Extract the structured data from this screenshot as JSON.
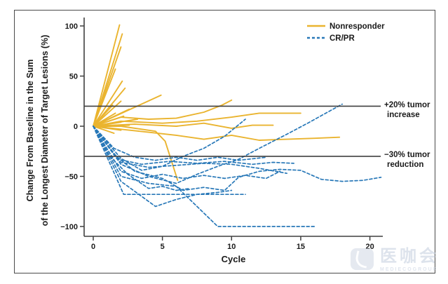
{
  "figure": {
    "background": "#ffffff",
    "border_color": "#4a4a4a",
    "axis_color": "#3f3f3f",
    "text_color": "#1a1a1a"
  },
  "chart_data": {
    "type": "line",
    "title": "",
    "xlabel": "Cycle",
    "ylabel_line1": "Change From Baseline in the Sum",
    "ylabel_line2": "of the Longest Diameter of Target Lesions (%)",
    "x_ticks": [
      0,
      5,
      10,
      15,
      20
    ],
    "y_ticks": [
      100,
      50,
      0,
      -50,
      -100
    ],
    "xlim": [
      0,
      21
    ],
    "ylim": [
      -110,
      105
    ],
    "grid": false,
    "legend": {
      "position": "top-right",
      "entries": [
        {
          "label": "Nonresponder",
          "color": "#eab42f",
          "style": "solid"
        },
        {
          "label": "CR/PR",
          "color": "#2878b8",
          "style": "dashed"
        }
      ]
    },
    "reference_lines": [
      {
        "y": 20,
        "color": "#3f3f3f",
        "label_line1": "+20% tumor",
        "label_line2": "increase"
      },
      {
        "y": -30,
        "color": "#3f3f3f",
        "label_line1": "−30% tumor",
        "label_line2": "reduction"
      }
    ],
    "series": [
      {
        "name": "n1",
        "group": "Nonresponder",
        "points": [
          [
            0,
            0
          ],
          [
            1.9,
            101
          ]
        ]
      },
      {
        "name": "n2",
        "group": "Nonresponder",
        "points": [
          [
            0,
            0
          ],
          [
            2.1,
            92
          ]
        ]
      },
      {
        "name": "n3",
        "group": "Nonresponder",
        "points": [
          [
            0,
            0
          ],
          [
            2.0,
            79
          ]
        ]
      },
      {
        "name": "n4",
        "group": "Nonresponder",
        "points": [
          [
            0,
            0
          ],
          [
            1.6,
            57
          ]
        ]
      },
      {
        "name": "n5",
        "group": "Nonresponder",
        "points": [
          [
            0,
            0
          ],
          [
            2.1,
            45
          ]
        ]
      },
      {
        "name": "n6",
        "group": "Nonresponder",
        "points": [
          [
            0,
            0
          ],
          [
            2.3,
            38
          ]
        ]
      },
      {
        "name": "n7",
        "group": "Nonresponder",
        "points": [
          [
            0,
            0
          ],
          [
            4.9,
            31
          ]
        ]
      },
      {
        "name": "n8",
        "group": "Nonresponder",
        "points": [
          [
            0,
            0
          ],
          [
            2.0,
            25
          ]
        ]
      },
      {
        "name": "n9",
        "group": "Nonresponder",
        "points": [
          [
            0,
            0
          ],
          [
            1.4,
            21
          ]
        ]
      },
      {
        "name": "n10",
        "group": "Nonresponder",
        "points": [
          [
            0,
            0
          ],
          [
            2.6,
            17
          ]
        ]
      },
      {
        "name": "n11",
        "group": "Nonresponder",
        "points": [
          [
            0,
            0
          ],
          [
            1.6,
            13
          ]
        ]
      },
      {
        "name": "n12",
        "group": "Nonresponder",
        "points": [
          [
            0,
            0
          ],
          [
            2.2,
            10
          ]
        ]
      },
      {
        "name": "n13",
        "group": "Nonresponder",
        "points": [
          [
            0,
            0
          ],
          [
            3.2,
            7
          ]
        ]
      },
      {
        "name": "n14",
        "group": "Nonresponder",
        "points": [
          [
            0,
            0
          ],
          [
            2.0,
            4
          ]
        ]
      },
      {
        "name": "n15",
        "group": "Nonresponder",
        "points": [
          [
            0,
            0
          ],
          [
            2.6,
            1
          ]
        ]
      },
      {
        "name": "n16",
        "group": "Nonresponder",
        "points": [
          [
            0,
            0
          ],
          [
            2.0,
            -4
          ]
        ]
      },
      {
        "name": "n17",
        "group": "Nonresponder",
        "points": [
          [
            0,
            0
          ],
          [
            1.5,
            -7
          ]
        ]
      },
      {
        "name": "n18",
        "group": "Nonresponder",
        "points": [
          [
            0,
            0
          ],
          [
            2,
            9
          ],
          [
            4,
            7
          ],
          [
            6,
            8
          ],
          [
            8,
            14
          ],
          [
            9.3,
            21
          ],
          [
            10,
            26
          ]
        ]
      },
      {
        "name": "n19",
        "group": "Nonresponder",
        "points": [
          [
            0,
            0
          ],
          [
            2,
            5
          ],
          [
            5,
            3
          ],
          [
            7.5,
            5
          ],
          [
            10,
            9
          ],
          [
            12,
            13
          ],
          [
            15,
            13
          ]
        ]
      },
      {
        "name": "n20",
        "group": "Nonresponder",
        "points": [
          [
            0,
            0
          ],
          [
            3,
            2
          ],
          [
            6,
            0
          ],
          [
            8,
            3
          ],
          [
            10,
            -2
          ],
          [
            11.5,
            1
          ],
          [
            13,
            1
          ]
        ]
      },
      {
        "name": "n21",
        "group": "Nonresponder",
        "points": [
          [
            0,
            0
          ],
          [
            2,
            -3
          ],
          [
            4,
            -6
          ],
          [
            6,
            -9
          ],
          [
            8,
            -13
          ],
          [
            10,
            -9
          ],
          [
            12,
            -14
          ],
          [
            14,
            -13
          ],
          [
            16,
            -12
          ],
          [
            17.8,
            -11
          ]
        ]
      },
      {
        "name": "n22",
        "group": "Nonresponder",
        "points": [
          [
            0,
            0
          ],
          [
            2,
            0
          ],
          [
            4.5,
            -5
          ],
          [
            5.2,
            -15
          ],
          [
            6.1,
            -54
          ]
        ]
      },
      {
        "name": "c1",
        "group": "CR/PR",
        "points": [
          [
            0,
            0
          ],
          [
            1.5,
            -28
          ],
          [
            3,
            -45
          ],
          [
            5,
            -52
          ],
          [
            6.5,
            -64
          ],
          [
            8,
            -61
          ],
          [
            9.5,
            -64
          ],
          [
            10.5,
            -51
          ],
          [
            12,
            -45
          ],
          [
            13.5,
            -43
          ],
          [
            15,
            -44
          ],
          [
            16.5,
            -53
          ],
          [
            18,
            -55
          ],
          [
            19.5,
            -54
          ],
          [
            20.8,
            -51
          ]
        ]
      },
      {
        "name": "c2",
        "group": "CR/PR",
        "points": [
          [
            0,
            0
          ],
          [
            2.2,
            -68
          ],
          [
            6,
            -68
          ],
          [
            11,
            -68
          ]
        ]
      },
      {
        "name": "c3",
        "group": "CR/PR",
        "points": [
          [
            0,
            0
          ],
          [
            2,
            -50
          ],
          [
            4,
            -57
          ],
          [
            6,
            -60
          ],
          [
            7.5,
            -80
          ],
          [
            9,
            -100
          ],
          [
            12,
            -100
          ],
          [
            16,
            -100
          ]
        ]
      },
      {
        "name": "c4",
        "group": "CR/PR",
        "points": [
          [
            0,
            0
          ],
          [
            2,
            -38
          ],
          [
            4,
            -50
          ],
          [
            6,
            -57
          ],
          [
            7.5,
            -48
          ],
          [
            9,
            -40
          ],
          [
            10.5,
            -33
          ],
          [
            12,
            -22
          ],
          [
            14,
            -8
          ],
          [
            15.5,
            3
          ],
          [
            18,
            22
          ]
        ]
      },
      {
        "name": "c5",
        "group": "CR/PR",
        "points": [
          [
            0,
            0
          ],
          [
            2,
            -32
          ],
          [
            3.5,
            -44
          ],
          [
            5,
            -40
          ],
          [
            6.5,
            -30
          ],
          [
            8,
            -22
          ],
          [
            9.5,
            -10
          ],
          [
            11,
            7
          ]
        ]
      },
      {
        "name": "c6",
        "group": "CR/PR",
        "points": [
          [
            0,
            0
          ],
          [
            1.8,
            -33
          ],
          [
            3.5,
            -38
          ],
          [
            5.5,
            -35
          ],
          [
            7.5,
            -37
          ],
          [
            9.5,
            -35
          ],
          [
            11.5,
            -38
          ],
          [
            13,
            -36
          ],
          [
            14.5,
            -37
          ]
        ]
      },
      {
        "name": "c7",
        "group": "CR/PR",
        "points": [
          [
            0,
            0
          ],
          [
            2,
            -36
          ],
          [
            4,
            -41
          ],
          [
            6,
            -39
          ],
          [
            8,
            -37
          ],
          [
            10,
            -38
          ],
          [
            12,
            -42
          ],
          [
            14,
            -47
          ]
        ]
      },
      {
        "name": "c8",
        "group": "CR/PR",
        "points": [
          [
            0,
            0
          ],
          [
            1.5,
            -22
          ],
          [
            3,
            -31
          ],
          [
            4.5,
            -34
          ],
          [
            6,
            -31
          ],
          [
            7.5,
            -34
          ],
          [
            9,
            -31
          ],
          [
            10.5,
            -34
          ],
          [
            12.5,
            -31
          ]
        ]
      },
      {
        "name": "c9",
        "group": "CR/PR",
        "points": [
          [
            0,
            0
          ],
          [
            2,
            -45
          ],
          [
            3.5,
            -52
          ],
          [
            5,
            -48
          ],
          [
            6.5,
            -52
          ],
          [
            8,
            -49
          ],
          [
            9.5,
            -52
          ],
          [
            11,
            -49
          ],
          [
            12.5,
            -52
          ],
          [
            13.5,
            -45
          ]
        ]
      },
      {
        "name": "c10",
        "group": "CR/PR",
        "points": [
          [
            0,
            0
          ],
          [
            2,
            -55
          ],
          [
            4.5,
            -80
          ],
          [
            6,
            -73
          ],
          [
            7.5,
            -68
          ],
          [
            9,
            -66
          ],
          [
            10,
            -64
          ]
        ]
      },
      {
        "name": "c11",
        "group": "CR/PR",
        "points": [
          [
            0,
            0
          ],
          [
            1.2,
            -30
          ],
          [
            2.5,
            -48
          ],
          [
            4,
            -62
          ],
          [
            5,
            -60
          ],
          [
            6,
            -64
          ],
          [
            7,
            -62
          ]
        ]
      }
    ]
  },
  "watermark": {
    "title": "医咖会",
    "subtext": "MEDIECOGROUP",
    "icon": "rounded-square-logo"
  }
}
